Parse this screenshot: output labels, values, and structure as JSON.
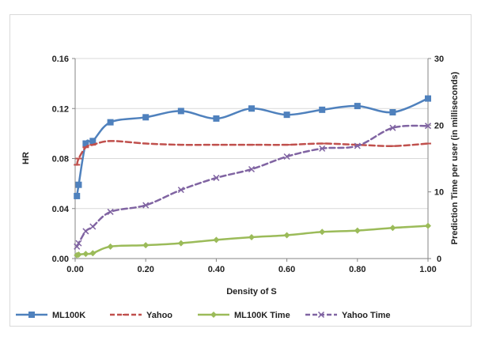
{
  "chart_data": {
    "type": "line",
    "title": "",
    "xlabel": "Density of S",
    "ylabel": "HR",
    "y2label": "Prediction Time per user (in milliseconds)",
    "xlim": [
      0,
      1
    ],
    "ylim": [
      0,
      0.16
    ],
    "y2lim": [
      0,
      30
    ],
    "x_ticks": [
      "0.00",
      "0.20",
      "0.40",
      "0.60",
      "0.80",
      "1.00"
    ],
    "y_ticks": [
      "0.00",
      "0.04",
      "0.08",
      "0.12",
      "0.16"
    ],
    "y2_ticks": [
      "0",
      "10",
      "20",
      "30"
    ],
    "grid": "horizontal",
    "legend_position": "bottom",
    "x": [
      0.005,
      0.01,
      0.03,
      0.05,
      0.1,
      0.2,
      0.3,
      0.4,
      0.5,
      0.6,
      0.7,
      0.8,
      0.9,
      1.0
    ],
    "series": [
      {
        "name": "ML100K",
        "axis": "left",
        "color": "#4F81BD",
        "marker": "square",
        "dash": "solid",
        "values": [
          0.05,
          0.059,
          0.092,
          0.094,
          0.109,
          0.113,
          0.118,
          0.112,
          0.12,
          0.115,
          0.119,
          0.122,
          0.117,
          0.128
        ]
      },
      {
        "name": "Yahoo",
        "axis": "left",
        "color": "#C0504D",
        "marker": "dash",
        "dash": "dashed",
        "values": [
          0.075,
          0.08,
          0.089,
          0.091,
          0.094,
          0.092,
          0.091,
          0.091,
          0.091,
          0.091,
          0.092,
          0.091,
          0.09,
          0.092
        ]
      },
      {
        "name": "ML100K Time",
        "axis": "right",
        "color": "#9BBB59",
        "marker": "diamond",
        "dash": "solid",
        "values": [
          0.5,
          0.6,
          0.7,
          0.8,
          1.8,
          2.0,
          2.3,
          2.8,
          3.2,
          3.5,
          4.0,
          4.2,
          4.6,
          4.9
        ]
      },
      {
        "name": "Yahoo Time",
        "axis": "right",
        "color": "#8064A2",
        "marker": "x",
        "dash": "dashed",
        "values": [
          1.8,
          2.3,
          4.1,
          4.8,
          7.0,
          8.0,
          10.3,
          12.1,
          13.4,
          15.3,
          16.5,
          16.9,
          19.6,
          19.9
        ]
      }
    ]
  }
}
